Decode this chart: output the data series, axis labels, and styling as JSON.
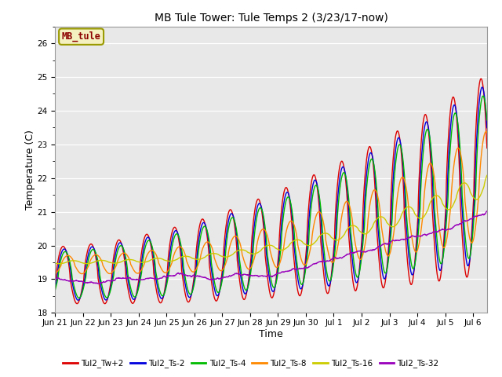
{
  "title": "MB Tule Tower: Tule Temps 2 (3/23/17-now)",
  "xlabel": "Time",
  "ylabel": "Temperature (C)",
  "ylim": [
    18.0,
    26.5
  ],
  "yticks": [
    18.0,
    19.0,
    20.0,
    21.0,
    22.0,
    23.0,
    24.0,
    25.0,
    26.0
  ],
  "bg_color": "#e8e8e8",
  "fig_color": "#ffffff",
  "legend_label": "MB_tule",
  "series_colors": {
    "Tul2_Tw+2": "#dd0000",
    "Tul2_Ts-2": "#0000dd",
    "Tul2_Ts-4": "#00bb00",
    "Tul2_Ts-8": "#ff8800",
    "Tul2_Ts-16": "#cccc00",
    "Tul2_Ts-32": "#9900bb"
  },
  "xtick_labels": [
    "Jun 21",
    "Jun 22",
    "Jun 23",
    "Jun 24",
    "Jun 25",
    "Jun 26",
    "Jun 27",
    "Jun 28",
    "Jun 29",
    "Jun 30",
    "Jul 1",
    "Jul 2",
    "Jul 3",
    "Jul 4",
    "Jul 5",
    "Jul 6"
  ],
  "n_points": 1500,
  "days": 15.5
}
